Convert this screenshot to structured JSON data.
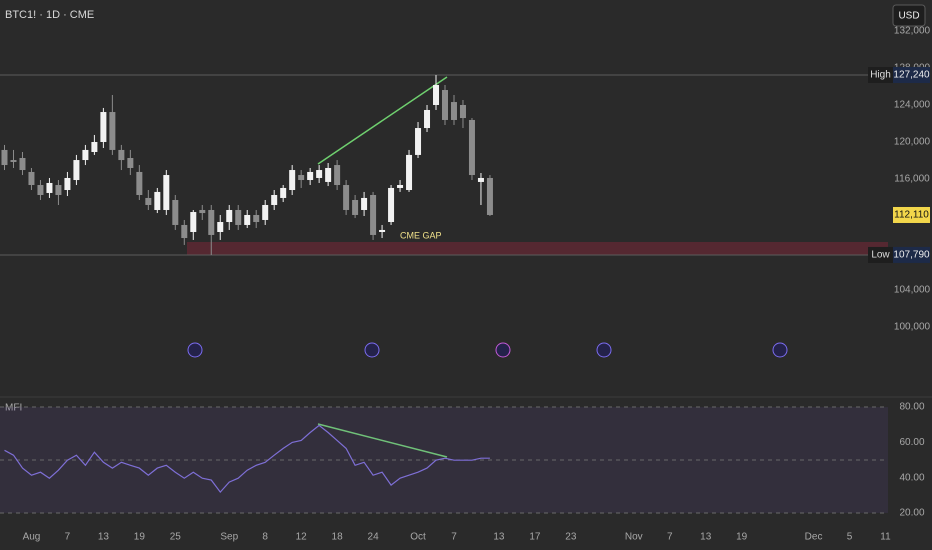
{
  "header": {
    "symbol": "BTC1! · 1D · CME",
    "currency": "USD"
  },
  "chart_data": [
    {
      "type": "candlestick",
      "categories": [
        null,
        null,
        null,
        "Aug",
        null,
        null,
        null,
        "7",
        null,
        null,
        null,
        "13",
        null,
        null,
        null,
        "19",
        null,
        null,
        null,
        "25",
        null,
        null,
        null,
        null,
        null,
        "Sep",
        null,
        null,
        null,
        "8",
        null,
        null,
        null,
        "12",
        null,
        null,
        null,
        "18",
        null,
        null,
        null,
        "24",
        null,
        null,
        null,
        null,
        "Oct",
        null,
        null,
        null,
        "7",
        null,
        null,
        null,
        null,
        "13",
        null,
        null,
        null,
        "17",
        null,
        null,
        null,
        "23",
        null,
        null,
        null,
        null,
        null,
        null,
        "Nov",
        null,
        null,
        null,
        "7",
        null,
        null,
        null,
        "13",
        null,
        null,
        null,
        "19",
        null,
        null,
        null,
        null,
        null,
        null,
        null,
        "Dec",
        null,
        null,
        null,
        "5",
        null,
        null,
        null,
        "11"
      ],
      "open": [
        119140,
        118050,
        118270,
        116760,
        115350,
        114490,
        115350,
        114810,
        115890,
        118050,
        118920,
        120000,
        123240,
        119140,
        118270,
        116760,
        113950,
        112650,
        112650,
        113730,
        111030,
        110270,
        112650,
        112650,
        110270,
        111350,
        112650,
        111030,
        112110,
        111570,
        113190,
        113950,
        114810,
        116430,
        115890,
        116110,
        115680,
        117510,
        115350,
        113730,
        112650,
        114270,
        110270,
        111350,
        115030,
        114810,
        118600,
        121510,
        124000,
        125620,
        124320,
        124000,
        122380,
        115680,
        116110,
        null,
        null,
        null,
        null,
        null,
        null,
        null,
        null,
        null,
        null,
        null,
        null,
        null,
        null,
        null,
        null,
        null,
        null,
        null,
        null,
        null,
        null,
        null,
        null,
        null,
        null,
        null,
        null,
        null,
        null,
        null,
        null,
        null,
        null,
        null,
        null,
        null,
        null,
        null,
        null,
        null,
        null,
        null,
        null
      ],
      "high": [
        119680,
        119140,
        118920,
        117190,
        115890,
        116110,
        115890,
        116760,
        118600,
        119680,
        120760,
        123680,
        125080,
        119680,
        119140,
        117510,
        114810,
        115030,
        116970,
        114270,
        111570,
        112650,
        113190,
        113190,
        112110,
        113190,
        113190,
        112650,
        112650,
        113730,
        114810,
        115350,
        117510,
        116970,
        117190,
        117510,
        117730,
        118050,
        115890,
        114270,
        114600,
        114600,
        111030,
        115350,
        115890,
        119140,
        122160,
        124000,
        127240,
        126160,
        125080,
        124540,
        122590,
        116650,
        116430,
        null,
        null,
        null,
        null,
        null,
        null,
        null,
        null,
        null,
        null,
        null,
        null,
        null,
        null,
        null,
        null,
        null,
        null,
        null,
        null,
        null,
        null,
        null,
        null,
        null,
        null,
        null,
        null,
        null,
        null,
        null,
        null,
        null,
        null,
        null,
        null,
        null,
        null,
        null,
        null,
        null,
        null,
        null,
        null
      ],
      "low": [
        116970,
        117190,
        116430,
        114810,
        113730,
        113950,
        113190,
        114160,
        115350,
        117510,
        118600,
        119350,
        118600,
        116970,
        116430,
        113730,
        112650,
        112320,
        112110,
        110490,
        108870,
        109410,
        111570,
        107790,
        109410,
        110490,
        110490,
        110700,
        110700,
        111030,
        112650,
        113510,
        114270,
        115030,
        115350,
        115570,
        115240,
        114810,
        112110,
        111780,
        112000,
        109410,
        109620,
        111030,
        114600,
        114600,
        118270,
        121080,
        123460,
        121840,
        121840,
        121510,
        115890,
        113190,
        112000,
        null,
        null,
        null,
        null,
        null,
        null,
        null,
        null,
        null,
        null,
        null,
        null,
        null,
        null,
        null,
        null,
        null,
        null,
        null,
        null,
        null,
        null,
        null,
        null,
        null,
        null,
        null,
        null,
        null,
        null,
        null,
        null,
        null,
        null,
        null,
        null,
        null,
        null,
        null,
        null,
        null,
        null,
        null,
        null
      ],
      "close": [
        117510,
        117840,
        116970,
        115350,
        114270,
        115570,
        114270,
        116110,
        118050,
        119140,
        120000,
        123240,
        119140,
        118050,
        117190,
        114270,
        113190,
        114600,
        116430,
        111030,
        109620,
        112430,
        112320,
        109950,
        111350,
        112650,
        111030,
        112110,
        111350,
        113190,
        114270,
        115030,
        116970,
        115890,
        116760,
        116970,
        117190,
        115350,
        112650,
        112110,
        113950,
        109950,
        110490,
        115030,
        115350,
        118600,
        121510,
        123460,
        126160,
        122380,
        122380,
        122590,
        116430,
        116110,
        112110,
        null,
        null,
        null,
        null,
        null,
        null,
        null,
        null,
        null,
        null,
        null,
        null,
        null,
        null,
        null,
        null,
        null,
        null,
        null,
        null,
        null,
        null,
        null,
        null,
        null,
        null,
        null,
        null,
        null,
        null,
        null,
        null,
        null,
        null,
        null,
        null,
        null,
        null,
        null,
        null,
        null,
        null,
        null,
        null
      ],
      "up_color": "#f2f2f2",
      "down_color": "#8c8c8c",
      "ylim": [
        92650,
        135350
      ],
      "yticks": [
        {
          "value": 100000,
          "label": "100,000"
        },
        {
          "value": 104000,
          "label": "104,000"
        },
        {
          "value": 116000,
          "label": "116,000"
        },
        {
          "value": 120000,
          "label": "120,000"
        },
        {
          "value": 124000,
          "label": "124,000"
        },
        {
          "value": 128000,
          "label": "128,000"
        },
        {
          "value": 132000,
          "label": "132,000"
        }
      ],
      "price_lines": [
        {
          "name": "High",
          "value": 127240,
          "label": "127,240"
        },
        {
          "name": "Low",
          "value": 107790,
          "label": "107,790"
        }
      ],
      "last_price": {
        "value": 112110,
        "label": "112,110"
      },
      "gap": {
        "label": "CME GAP",
        "range": [
          107790,
          109190
        ]
      }
    },
    {
      "type": "line",
      "title": "MFI",
      "color": "#7e6fd6",
      "values": [
        55.5,
        52.7,
        45.4,
        41.4,
        43.1,
        39.7,
        44.2,
        49.9,
        52.7,
        47.0,
        54.4,
        48.7,
        45.4,
        48.7,
        47.0,
        45.4,
        41.4,
        45.4,
        47.0,
        43.1,
        39.7,
        43.1,
        39.7,
        38.6,
        31.8,
        37.5,
        39.7,
        44.2,
        47.0,
        48.7,
        52.7,
        56.6,
        60.0,
        61.1,
        65.6,
        69.6,
        65.6,
        61.1,
        56.6,
        47.0,
        48.7,
        41.4,
        43.1,
        35.8,
        39.7,
        41.4,
        43.1,
        45.4,
        49.9,
        51.0,
        49.9,
        49.9,
        49.9,
        51.0,
        51.0,
        null,
        null,
        null,
        null,
        null,
        null,
        null,
        null,
        null,
        null,
        null,
        null,
        null,
        null,
        null,
        null,
        null,
        null,
        null,
        null,
        null,
        null,
        null,
        null,
        null,
        null,
        null,
        null,
        null,
        null,
        null,
        null,
        null,
        null,
        null,
        null,
        null,
        null,
        null,
        null,
        null,
        null,
        null,
        null
      ],
      "ylim": [
        16,
        84
      ],
      "yticks": [
        {
          "value": 80,
          "label": "80.00"
        },
        {
          "value": 60,
          "label": "60.00"
        },
        {
          "value": 40,
          "label": "40.00"
        },
        {
          "value": 20,
          "label": "20.00"
        }
      ],
      "bands": [
        80,
        50,
        20
      ]
    }
  ]
}
